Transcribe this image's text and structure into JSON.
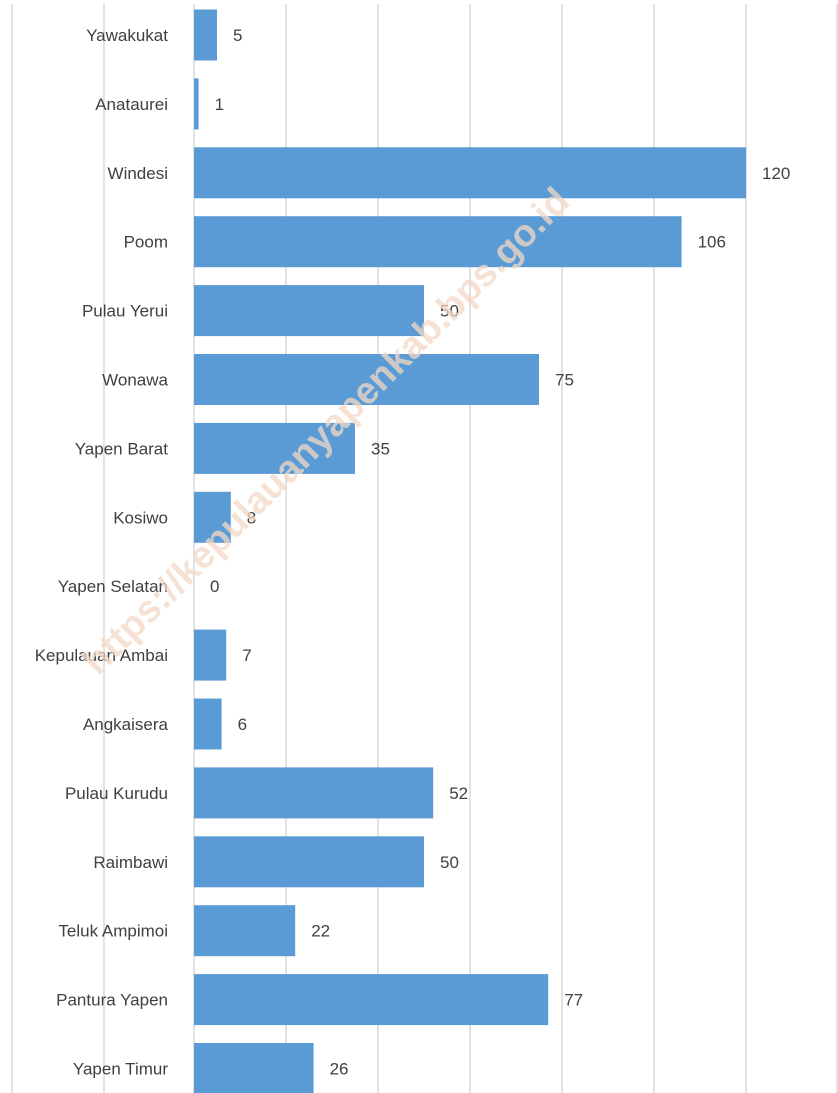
{
  "watermark": "https://kepulauanyapenkab.bps.go.id",
  "chart_data": {
    "type": "bar",
    "orientation": "horizontal",
    "categories": [
      "Yawakukat",
      "Anataurei",
      "Windesi",
      "Poom",
      "Pulau Yerui",
      "Wonawa",
      "Yapen Barat",
      "Kosiwo",
      "Yapen Selatan",
      "Kepulauan Ambai",
      "Angkaisera",
      "Pulau Kurudu",
      "Raimbawi",
      "Teluk Ampimoi",
      "Pantura Yapen",
      "Yapen Timur"
    ],
    "values": [
      5,
      1,
      120,
      106,
      50,
      75,
      35,
      8,
      0,
      7,
      6,
      52,
      50,
      22,
      77,
      26
    ],
    "title": "",
    "xlabel": "",
    "ylabel": "",
    "xlim": [
      0,
      120
    ],
    "grid": true,
    "legend": "none",
    "bar_color": "#5b9bd5",
    "grid_color": "#d9d9d9",
    "data_labels": true
  }
}
